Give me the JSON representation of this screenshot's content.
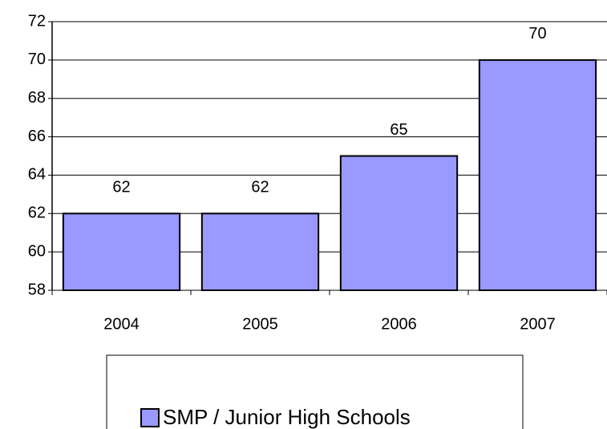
{
  "chart_data": {
    "type": "bar",
    "categories": [
      "2004",
      "2005",
      "2006",
      "2007"
    ],
    "series": [
      {
        "name": "SMP / Junior High Schools",
        "color": "#9999ff",
        "values": [
          62,
          62,
          65,
          70
        ]
      }
    ],
    "ylim": [
      58,
      72
    ],
    "yticks": [
      58,
      60,
      62,
      64,
      66,
      68,
      70,
      72
    ],
    "grid": true,
    "legend": "bottom"
  }
}
